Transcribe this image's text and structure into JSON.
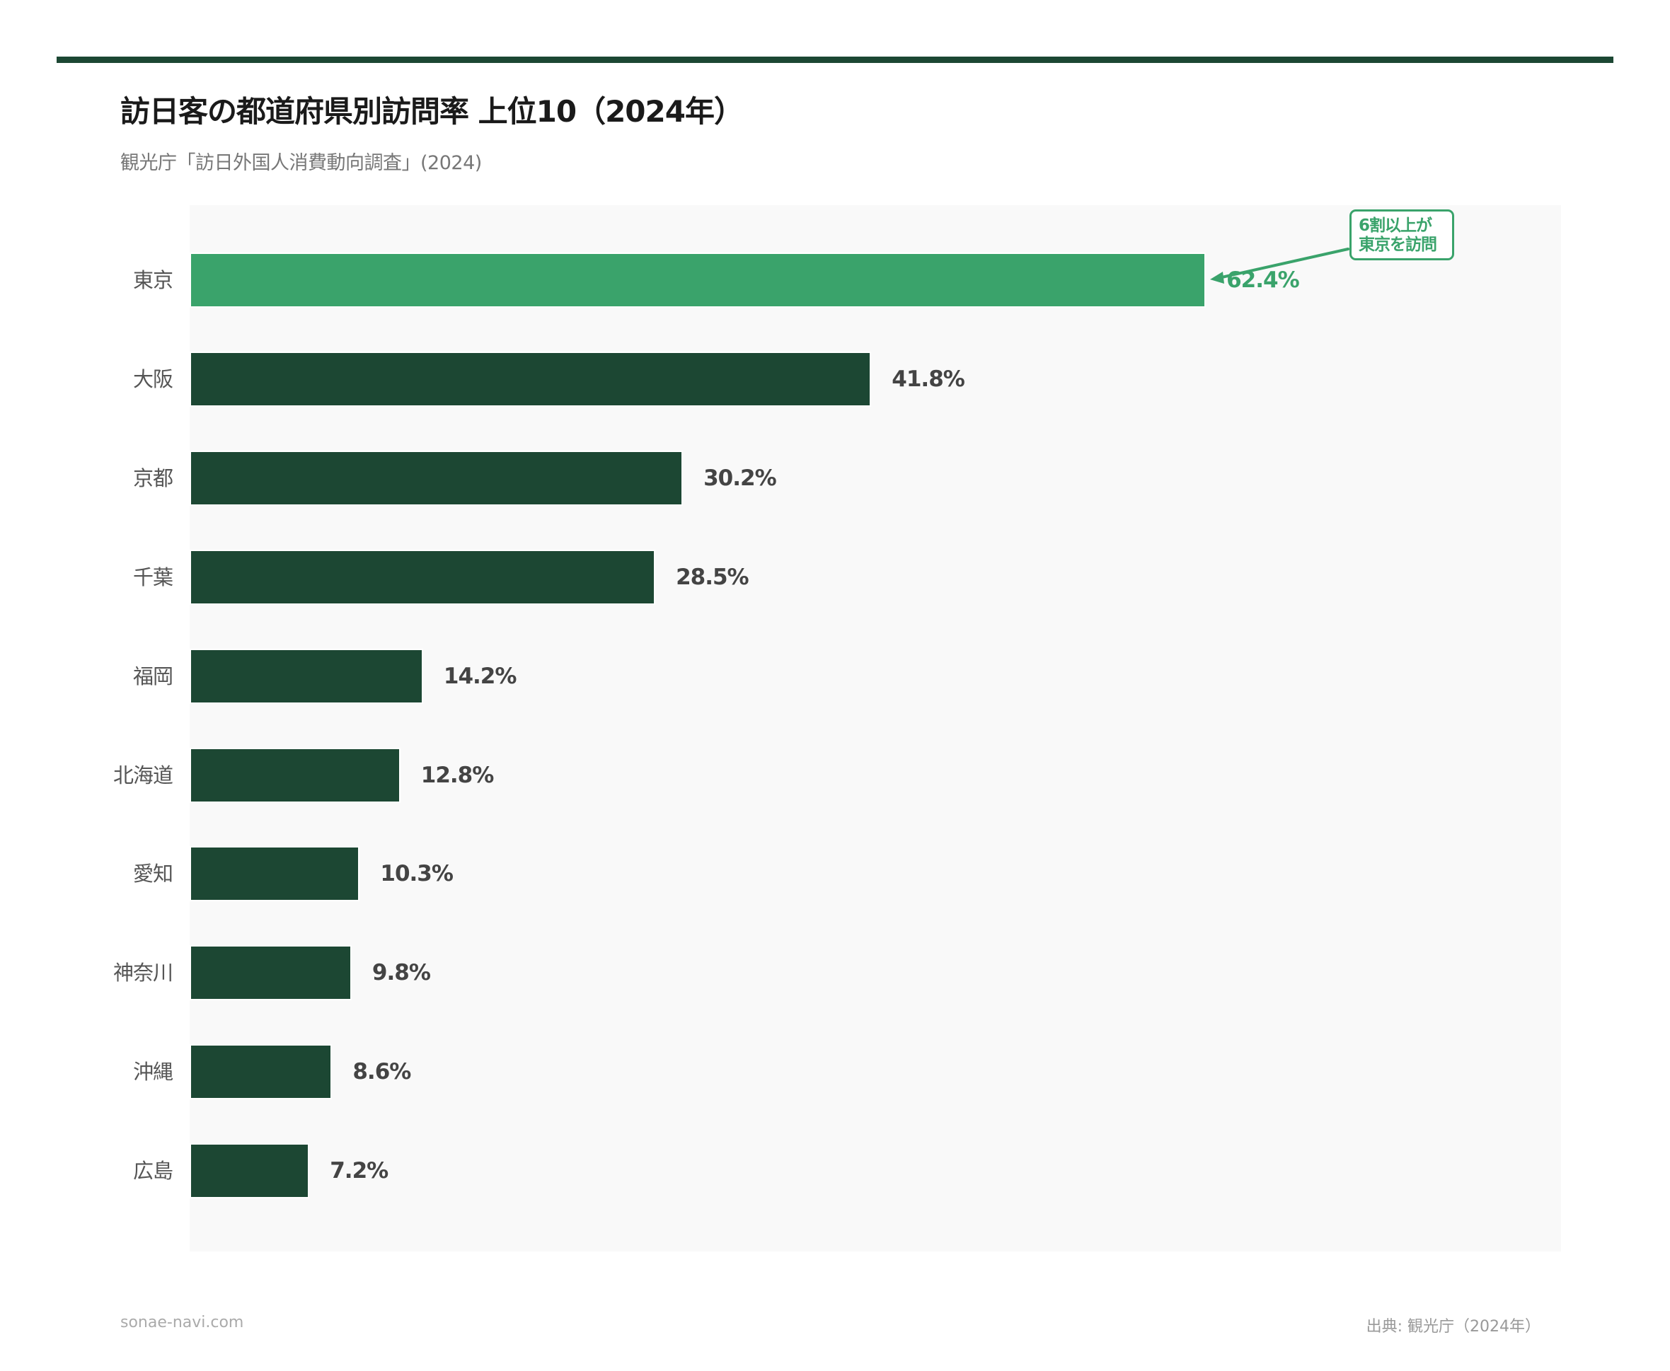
{
  "header": {
    "title": "訪日客の都道府県別訪問率 上位10（2024年）",
    "subtitle": "観光庁「訪日外国人消費動向調査」(2024)"
  },
  "colors": {
    "accent_rule": "#1c4733",
    "bar_default": "#1c4733",
    "bar_highlight": "#3aa36b",
    "panel_background": "#f9f9f9"
  },
  "annotation": {
    "line1": "6割以上が",
    "line2": "東京を訪問",
    "target": "東京"
  },
  "footer": {
    "site": "sonae-navi.com",
    "source": "出典: 観光庁（2024年）"
  },
  "rows": [
    {
      "label": "東京",
      "value": 62.4,
      "value_label": "62.4%",
      "highlight": true
    },
    {
      "label": "大阪",
      "value": 41.8,
      "value_label": "41.8%",
      "highlight": false
    },
    {
      "label": "京都",
      "value": 30.2,
      "value_label": "30.2%",
      "highlight": false
    },
    {
      "label": "千葉",
      "value": 28.5,
      "value_label": "28.5%",
      "highlight": false
    },
    {
      "label": "福岡",
      "value": 14.2,
      "value_label": "14.2%",
      "highlight": false
    },
    {
      "label": "北海道",
      "value": 12.8,
      "value_label": "12.8%",
      "highlight": false
    },
    {
      "label": "愛知",
      "value": 10.3,
      "value_label": "10.3%",
      "highlight": false
    },
    {
      "label": "神奈川",
      "value": 9.8,
      "value_label": "9.8%",
      "highlight": false
    },
    {
      "label": "沖縄",
      "value": 8.6,
      "value_label": "8.6%",
      "highlight": false
    },
    {
      "label": "広島",
      "value": 7.2,
      "value_label": "7.2%",
      "highlight": false
    }
  ],
  "chart_data": {
    "type": "bar",
    "orientation": "horizontal",
    "title": "訪日客の都道府県別訪問率 上位10（2024年）",
    "subtitle": "観光庁「訪日外国人消費動向調査」(2024)",
    "categories": [
      "東京",
      "大阪",
      "京都",
      "千葉",
      "福岡",
      "北海道",
      "愛知",
      "神奈川",
      "沖縄",
      "広島"
    ],
    "values": [
      62.4,
      41.8,
      30.2,
      28.5,
      14.2,
      12.8,
      10.3,
      9.8,
      8.6,
      7.2
    ],
    "unit": "%",
    "xlabel": "",
    "ylabel": "",
    "xlim": [
      0,
      84.5
    ],
    "grid": false,
    "legend": null,
    "highlighted_category": "東京",
    "annotations": [
      {
        "text": "6割以上が東京を訪問",
        "points_to": "東京"
      }
    ],
    "source": "出典: 観光庁（2024年）"
  }
}
